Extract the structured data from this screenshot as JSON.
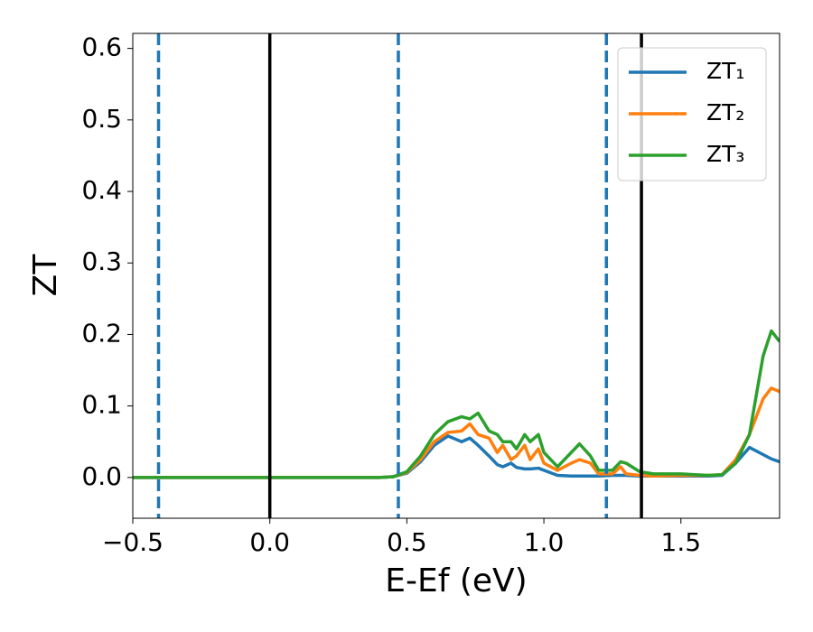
{
  "chart_data": {
    "type": "line",
    "xlabel": "E-Ef (eV)",
    "ylabel": "ZT",
    "xlim": [
      -0.5,
      1.86
    ],
    "ylim": [
      -0.057,
      0.621
    ],
    "xticks": [
      {
        "value": -0.5,
        "label": "−0.5"
      },
      {
        "value": 0,
        "label": "0.0"
      },
      {
        "value": 0.5,
        "label": "0.5"
      },
      {
        "value": 1,
        "label": "1.0"
      },
      {
        "value": 1.5,
        "label": "1.5"
      }
    ],
    "yticks": [
      {
        "value": 0,
        "label": "0.0"
      },
      0.1,
      0.2,
      0.3,
      0.4,
      0.5,
      0.6
    ],
    "legend": "upper right",
    "x": [
      -0.5,
      0,
      0.4,
      0.45,
      0.5,
      0.55,
      0.6,
      0.65,
      0.7,
      0.73,
      0.76,
      0.8,
      0.83,
      0.85,
      0.88,
      0.9,
      0.93,
      0.95,
      0.98,
      1.0,
      1.05,
      1.1,
      1.13,
      1.17,
      1.2,
      1.25,
      1.28,
      1.3,
      1.35,
      1.4,
      1.5,
      1.6,
      1.65,
      1.7,
      1.75,
      1.8,
      1.83,
      1.86
    ],
    "series": [
      {
        "name": "ZT₁",
        "color": "#1f77b4",
        "values": [
          0,
          0,
          0,
          0.001,
          0.006,
          0.022,
          0.045,
          0.058,
          0.05,
          0.055,
          0.045,
          0.03,
          0.018,
          0.015,
          0.02,
          0.014,
          0.012,
          0.012,
          0.013,
          0.01,
          0.003,
          0.002,
          0.002,
          0.002,
          0.002,
          0.003,
          0.003,
          0.003,
          0.002,
          0.002,
          0.002,
          0.002,
          0.003,
          0.02,
          0.042,
          0.032,
          0.026,
          0.022
        ]
      },
      {
        "name": "ZT₂",
        "color": "#ff7f0e",
        "values": [
          0,
          0,
          0,
          0.001,
          0.007,
          0.025,
          0.05,
          0.063,
          0.065,
          0.075,
          0.06,
          0.055,
          0.035,
          0.045,
          0.025,
          0.03,
          0.045,
          0.025,
          0.04,
          0.02,
          0.01,
          0.02,
          0.025,
          0.02,
          0.005,
          0.005,
          0.015,
          0.005,
          0.003,
          0.002,
          0.003,
          0.003,
          0.004,
          0.025,
          0.06,
          0.11,
          0.125,
          0.12
        ]
      },
      {
        "name": "ZT₃",
        "color": "#2ca02c",
        "values": [
          0,
          0,
          0,
          0.001,
          0.008,
          0.03,
          0.06,
          0.078,
          0.085,
          0.082,
          0.09,
          0.065,
          0.06,
          0.05,
          0.05,
          0.04,
          0.06,
          0.05,
          0.06,
          0.035,
          0.015,
          0.035,
          0.047,
          0.03,
          0.01,
          0.01,
          0.022,
          0.02,
          0.008,
          0.005,
          0.005,
          0.003,
          0.004,
          0.02,
          0.06,
          0.17,
          0.205,
          0.19
        ]
      }
    ],
    "vlines": [
      {
        "x": -0.406,
        "color": "#1f77b4",
        "style": "dashed"
      },
      {
        "x": 0,
        "color": "#000000",
        "style": "solid"
      },
      {
        "x": 0.469,
        "color": "#1f77b4",
        "style": "dashed"
      },
      {
        "x": 1.228,
        "color": "#1f77b4",
        "style": "dashed"
      },
      {
        "x": 1.356,
        "color": "#000000",
        "style": "solid"
      }
    ]
  }
}
